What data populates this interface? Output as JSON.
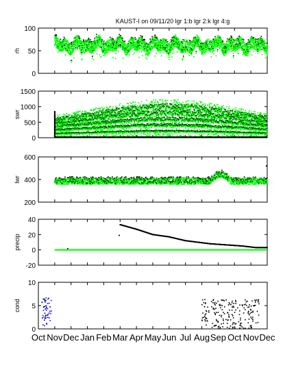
{
  "chart_data": {
    "type": "scatter",
    "title": "KAUST-I on 09/11/20 lgr 1:b lgr 2:k lgr 4:g",
    "x_labels": [
      "Oct",
      "Nov",
      "Dec",
      "Jan",
      "Feb",
      "Mar",
      "Apr",
      "May",
      "Jun",
      "Jul",
      "Aug",
      "Sep",
      "Oct",
      "Nov",
      "Dec"
    ],
    "x_range_months": [
      0,
      14
    ],
    "series_colors": {
      "lgr 1": "#0000ff",
      "lgr 2": "#000000",
      "lgr 4": "#00ff00"
    },
    "panels": [
      {
        "id": "rh",
        "ylabel": "rh",
        "ylim": [
          0,
          100
        ],
        "yticks": [
          "0",
          "50",
          "100"
        ],
        "grid": false,
        "description_data": {
          "start": 1.0,
          "end": 14.0,
          "band_low": 40,
          "band_high": 92,
          "dips_to": 5
        }
      },
      {
        "id": "swr",
        "ylabel": "swr",
        "ylim": [
          0,
          1500
        ],
        "yticks": [
          "0",
          "500",
          "1000",
          "1500"
        ],
        "grid": false,
        "description_data": {
          "start": 1.0,
          "end": 14.0,
          "bands": [
            150,
            300,
            450,
            600,
            750
          ],
          "max": 1000
        }
      },
      {
        "id": "lwr",
        "ylabel": "lwr",
        "ylim": [
          200,
          600
        ],
        "yticks": [
          "200",
          "400",
          "600"
        ],
        "grid": false,
        "description_data": {
          "start": 1.0,
          "end": 14.0,
          "mean": 385,
          "spread": 30,
          "peak": 470
        }
      },
      {
        "id": "precip",
        "ylabel": "precip",
        "ylim": [
          -20,
          40
        ],
        "yticks": [
          "-20",
          "0",
          "20",
          "40"
        ],
        "grid": false,
        "description_data": {
          "green_level": 0,
          "black_points": [
            [
              5.0,
              33
            ],
            [
              6.0,
              27
            ],
            [
              7.0,
              20
            ],
            [
              8.0,
              17
            ],
            [
              9.0,
              12
            ],
            [
              10.5,
              8
            ],
            [
              12.5,
              5
            ],
            [
              13.3,
              3
            ],
            [
              14.0,
              3
            ]
          ]
        }
      },
      {
        "id": "cond",
        "ylabel": "cond",
        "ylim": [
          0,
          10
        ],
        "yticks": [
          "0",
          "5",
          "10"
        ],
        "grid": false,
        "description_data": {
          "level": 6.3,
          "start": 1.0,
          "gap_start": 10.0,
          "gap_end": 10.3,
          "scatter_start": 10.0,
          "scatter_end": 14.0,
          "blue_start": 0.2,
          "blue_end": 0.8
        }
      }
    ]
  }
}
